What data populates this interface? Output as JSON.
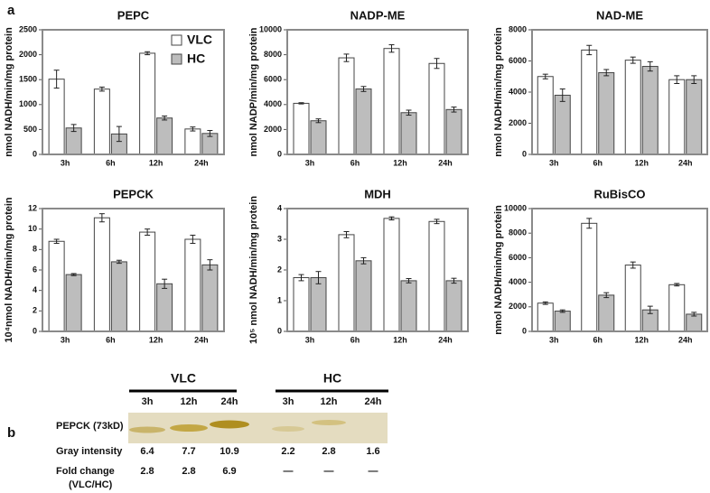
{
  "panel_labels": [
    "a",
    "b"
  ],
  "chart_data": [
    {
      "type": "bar",
      "title": "PEPC",
      "ylabel": "nmol NADH/min/mg protein",
      "categories": [
        "3h",
        "6h",
        "12h",
        "24h"
      ],
      "ylim": [
        0,
        2500
      ],
      "yticks": [
        0,
        500,
        1000,
        1500,
        2000,
        2500
      ],
      "legend": "upper right",
      "series": [
        {
          "name": "VLC",
          "color": "#ffffff",
          "values": [
            1510,
            1310,
            2030,
            510
          ],
          "errors": [
            180,
            40,
            30,
            40
          ]
        },
        {
          "name": "HC",
          "color": "#bdbdbd",
          "values": [
            530,
            410,
            730,
            420
          ],
          "errors": [
            70,
            150,
            40,
            60
          ]
        }
      ]
    },
    {
      "type": "bar",
      "title": "NADP-ME",
      "ylabel": "nmol NADP/min/mg protein",
      "categories": [
        "3h",
        "6h",
        "12h",
        "24h"
      ],
      "ylim": [
        0,
        10000
      ],
      "yticks": [
        0,
        2000,
        4000,
        6000,
        8000,
        10000
      ],
      "series": [
        {
          "color": "#ffffff",
          "values": [
            4100,
            7750,
            8500,
            7300
          ],
          "errors": [
            50,
            300,
            300,
            400
          ]
        },
        {
          "color": "#bdbdbd",
          "values": [
            2700,
            5250,
            3350,
            3600
          ],
          "errors": [
            150,
            200,
            200,
            200
          ]
        }
      ]
    },
    {
      "type": "bar",
      "title": "NAD-ME",
      "ylabel": "nmol NADH/min/mg protein",
      "categories": [
        "3h",
        "6h",
        "12h",
        "24h"
      ],
      "ylim": [
        0,
        8000
      ],
      "yticks": [
        0,
        2000,
        4000,
        6000,
        8000
      ],
      "series": [
        {
          "color": "#ffffff",
          "values": [
            5000,
            6700,
            6050,
            4800
          ],
          "errors": [
            150,
            300,
            200,
            250
          ]
        },
        {
          "color": "#bdbdbd",
          "values": [
            3800,
            5250,
            5650,
            4800
          ],
          "errors": [
            400,
            200,
            300,
            250
          ]
        }
      ]
    },
    {
      "type": "bar",
      "title": "PEPCK",
      "ylabel": "10⁴nmol NADH/min/mg protein",
      "categories": [
        "3h",
        "6h",
        "12h",
        "24h"
      ],
      "ylim": [
        0,
        12
      ],
      "yticks": [
        0,
        2,
        4,
        6,
        8,
        10,
        12
      ],
      "series": [
        {
          "color": "#ffffff",
          "values": [
            8.8,
            11.1,
            9.7,
            9.0
          ],
          "errors": [
            0.2,
            0.4,
            0.3,
            0.4
          ]
        },
        {
          "color": "#bdbdbd",
          "values": [
            5.55,
            6.8,
            4.65,
            6.5
          ],
          "errors": [
            0.1,
            0.15,
            0.45,
            0.5
          ]
        }
      ]
    },
    {
      "type": "bar",
      "title": "MDH",
      "ylabel": "10⁵ nmol NADH/min/mg protein",
      "categories": [
        "3h",
        "6h",
        "12h",
        "24h"
      ],
      "ylim": [
        0,
        4
      ],
      "yticks": [
        0,
        1,
        2,
        3,
        4
      ],
      "series": [
        {
          "color": "#ffffff",
          "values": [
            1.75,
            3.15,
            3.68,
            3.58
          ],
          "errors": [
            0.1,
            0.1,
            0.05,
            0.07
          ]
        },
        {
          "color": "#bdbdbd",
          "values": [
            1.75,
            2.3,
            1.65,
            1.65
          ],
          "errors": [
            0.2,
            0.1,
            0.07,
            0.08
          ]
        }
      ]
    },
    {
      "type": "bar",
      "title": "RuBisCO",
      "ylabel": "nmol NADH/min/mg protein",
      "categories": [
        "3h",
        "6h",
        "12h",
        "24h"
      ],
      "ylim": [
        0,
        10000
      ],
      "yticks": [
        0,
        2000,
        4000,
        6000,
        8000,
        10000
      ],
      "series": [
        {
          "color": "#ffffff",
          "values": [
            2300,
            8800,
            5400,
            3800
          ],
          "errors": [
            100,
            400,
            250,
            100
          ]
        },
        {
          "color": "#bdbdbd",
          "values": [
            1650,
            2950,
            1750,
            1400
          ],
          "errors": [
            100,
            200,
            300,
            150
          ]
        }
      ]
    }
  ],
  "blot": {
    "groups": [
      {
        "name": "VLC",
        "times": [
          "3h",
          "12h",
          "24h"
        ]
      },
      {
        "name": "HC",
        "times": [
          "3h",
          "12h",
          "24h"
        ]
      }
    ],
    "band_label": "PEPCK (73kD)",
    "gray_label": "Gray intensity",
    "gray_values": [
      6.4,
      7.7,
      10.9,
      2.2,
      2.8,
      1.6
    ],
    "fold_label": [
      "Fold change",
      "(VLC/HC)"
    ],
    "fold_values": [
      2.8,
      2.8,
      6.9,
      "—",
      "—",
      "—"
    ]
  }
}
